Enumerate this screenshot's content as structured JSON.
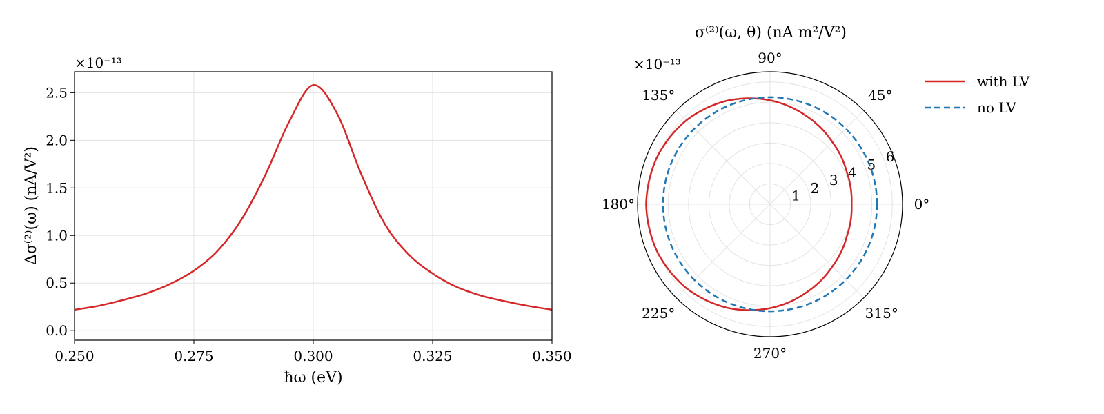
{
  "chart_data": [
    {
      "type": "line",
      "xlabel": "ħω (eV)",
      "ylabel": "Δσ⁽²⁾(ω) (nA/V²)",
      "y_multiplier": "×10⁻¹³",
      "xlim": [
        0.25,
        0.35
      ],
      "ylim": [
        -0.1,
        2.72
      ],
      "x_ticks": [
        0.25,
        0.275,
        0.3,
        0.325,
        0.35
      ],
      "x_tick_labels": [
        "0.250",
        "0.275",
        "0.300",
        "0.325",
        "0.350"
      ],
      "y_ticks": [
        0.0,
        0.5,
        1.0,
        1.5,
        2.0,
        2.5
      ],
      "y_tick_labels": [
        "0.0",
        "0.5",
        "1.0",
        "1.5",
        "2.0",
        "2.5"
      ],
      "grid": true,
      "series": [
        {
          "color": "#d62728",
          "x": [
            0.25,
            0.255,
            0.26,
            0.265,
            0.27,
            0.275,
            0.28,
            0.285,
            0.29,
            0.295,
            0.3,
            0.305,
            0.31,
            0.315,
            0.32,
            0.325,
            0.33,
            0.335,
            0.34,
            0.345,
            0.35
          ],
          "y": [
            0.22,
            0.26,
            0.32,
            0.39,
            0.49,
            0.63,
            0.84,
            1.17,
            1.64,
            2.2,
            2.58,
            2.28,
            1.65,
            1.12,
            0.8,
            0.6,
            0.46,
            0.37,
            0.31,
            0.26,
            0.22
          ]
        }
      ]
    },
    {
      "type": "polar",
      "title": "σ⁽²⁾(ω, θ) (nA m²/V²)",
      "r_multiplier": "×10⁻¹³",
      "rlim": [
        0,
        6.5
      ],
      "r_ticks": [
        1,
        2,
        3,
        4,
        5,
        6
      ],
      "r_tick_labels": [
        "1",
        "2",
        "3",
        "4",
        "5",
        "6"
      ],
      "theta_ticks_deg": [
        0,
        45,
        90,
        135,
        180,
        225,
        270,
        315
      ],
      "theta_tick_labels": [
        "0°",
        "45°",
        "90°",
        "135°",
        "180°",
        "225°",
        "270°",
        "315°"
      ],
      "grid": true,
      "legend_position": "right",
      "series": [
        {
          "name": "with LV",
          "color": "#d62728",
          "dash": "solid",
          "theta_deg": [
            0,
            22.5,
            45,
            67.5,
            90,
            112.5,
            135,
            157.5,
            180,
            202.5,
            225,
            247.5,
            270,
            292.5,
            315,
            337.5
          ],
          "r": [
            4.0,
            4.08,
            4.32,
            4.68,
            5.1,
            5.5,
            5.82,
            6.01,
            6.08,
            6.01,
            5.82,
            5.5,
            5.1,
            4.68,
            4.32,
            4.08
          ]
        },
        {
          "name": "no LV",
          "color": "#1f77b4",
          "dash": "dashed",
          "theta_deg": [
            0,
            45,
            90,
            135,
            180,
            225,
            270,
            315
          ],
          "r": [
            5.25,
            5.25,
            5.25,
            5.25,
            5.25,
            5.25,
            5.25,
            5.25
          ]
        }
      ]
    }
  ]
}
